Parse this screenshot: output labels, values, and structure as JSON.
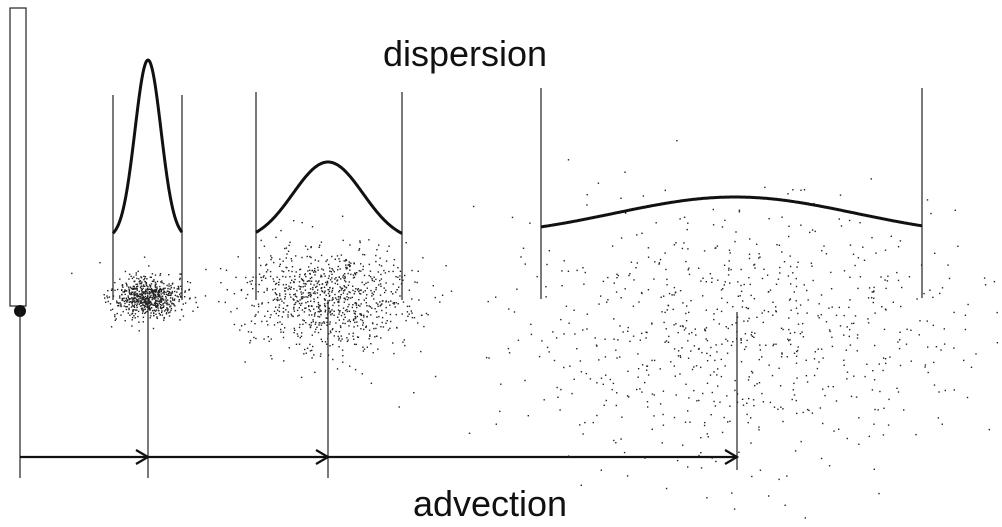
{
  "labels": {
    "dispersion": "dispersion",
    "advection": "advection"
  }
}
